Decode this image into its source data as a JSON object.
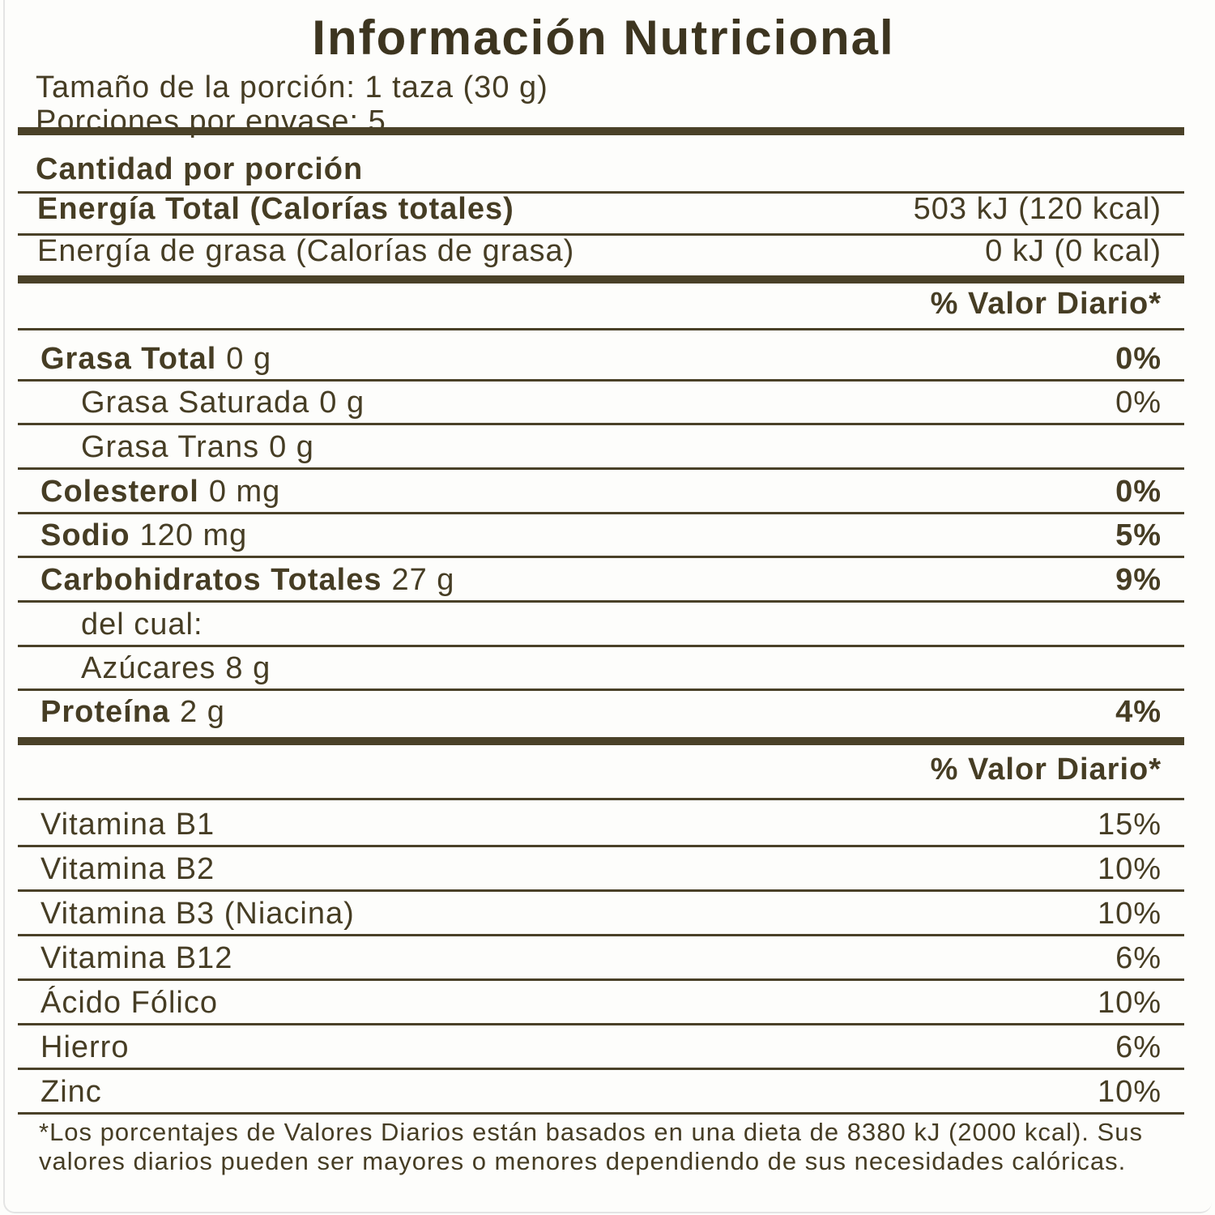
{
  "title": "Información Nutricional",
  "serving_size": "Tamaño de la porción: 1 taza (30 g)",
  "servings_per_container": "Porciones por envase: 5",
  "amount_per_serving": "Cantidad por porción",
  "energy": [
    {
      "label": "Energía Total (Calorías totales)",
      "value": "503 kJ (120 kcal)",
      "bold": true
    },
    {
      "label": "Energía de grasa (Calorías de grasa)",
      "value": "0 kJ (0 kcal)",
      "bold": false
    }
  ],
  "daily_value_header": "% Valor Diario*",
  "nutrients": [
    {
      "label": "Grasa Total",
      "amount": "0 g",
      "dv": "0%",
      "bold": true,
      "indent": false
    },
    {
      "label": "Grasa Saturada",
      "amount": "0 g",
      "dv": "0%",
      "bold": false,
      "indent": true
    },
    {
      "label": "Grasa Trans",
      "amount": "0 g",
      "dv": "",
      "bold": false,
      "indent": true
    },
    {
      "label": "Colesterol",
      "amount": "0 mg",
      "dv": "0%",
      "bold": true,
      "indent": false
    },
    {
      "label": "Sodio",
      "amount": "120 mg",
      "dv": "5%",
      "bold": true,
      "indent": false
    },
    {
      "label": "Carbohidratos Totales",
      "amount": "27 g",
      "dv": "9%",
      "bold": true,
      "indent": false
    },
    {
      "label": "del cual:",
      "amount": "",
      "dv": "",
      "bold": false,
      "indent": true
    },
    {
      "label": "Azúcares",
      "amount": "8 g",
      "dv": "",
      "bold": false,
      "indent": true
    },
    {
      "label": "Proteína",
      "amount": "2 g",
      "dv": "4%",
      "bold": true,
      "indent": false
    }
  ],
  "daily_value_header_2": "% Valor Diario*",
  "vitamins": [
    {
      "label": "Vitamina B1",
      "dv": "15%"
    },
    {
      "label": "Vitamina B2",
      "dv": "10%"
    },
    {
      "label": "Vitamina B3 (Niacina)",
      "dv": "10%"
    },
    {
      "label": "Vitamina B12",
      "dv": "6%"
    },
    {
      "label": "Ácido Fólico",
      "dv": "10%"
    },
    {
      "label": "Hierro",
      "dv": "6%"
    },
    {
      "label": "Zinc",
      "dv": "10%"
    }
  ],
  "footnote": "*Los porcentajes de Valores Diarios están basados en una dieta de 8380 kJ (2000 kcal). Sus valores diarios pueden ser mayores o menores dependiendo de sus necesidades calóricas."
}
